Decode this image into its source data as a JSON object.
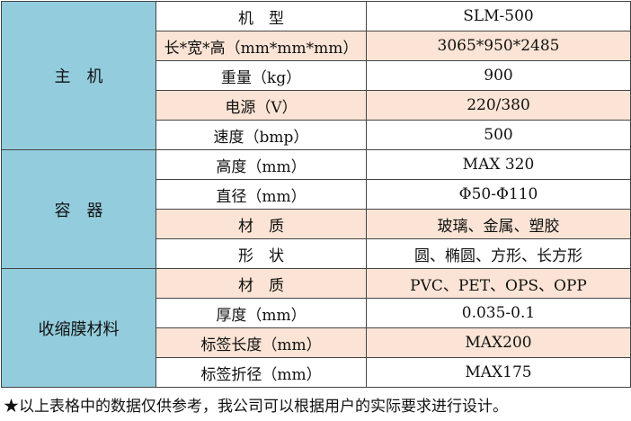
{
  "groups": [
    {
      "name": "主　机",
      "rows": [
        {
          "label": "机　型",
          "value": "SLM-500"
        },
        {
          "label": "长*宽*高（mm*mm*mm）",
          "value": "3065*950*2485"
        },
        {
          "label": "重量（kg）",
          "value": "900"
        },
        {
          "label": "电源（V）",
          "value": "220/380"
        },
        {
          "label": "速度（bmp）",
          "value": "500"
        }
      ]
    },
    {
      "name": "容　器",
      "rows": [
        {
          "label": "高度（mm）",
          "value": "MAX 320"
        },
        {
          "label": "直径（mm）",
          "value": "Φ50-Φ110"
        },
        {
          "label": "材　质",
          "value": "玻璃、金属、塑胶"
        },
        {
          "label": "形　状",
          "value": "圆、椭圆、方形、长方形"
        }
      ]
    },
    {
      "name": "收缩膜材料",
      "rows": [
        {
          "label": "材　质",
          "value": "PVC、PET、OPS、OPP"
        },
        {
          "label": "厚度（mm）",
          "value": "0.035-0.1"
        },
        {
          "label": "标签长度（mm）",
          "value": "MAX200"
        },
        {
          "label": "标签折径（mm）",
          "value": "MAX175"
        }
      ]
    }
  ],
  "footnote": "★以上表格中的数据仅供参考，我公司可以根据用户的实际要求进行设计。",
  "colors": {
    "group_bg": "#93cddd",
    "alt_row_bg": "#fbe4d5"
  }
}
